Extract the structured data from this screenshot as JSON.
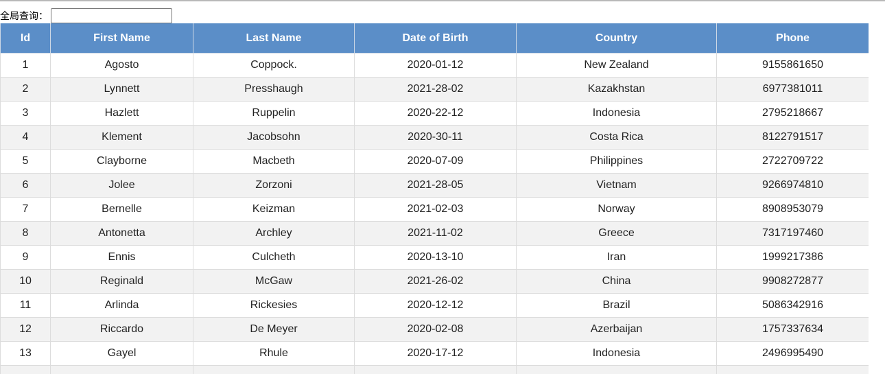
{
  "search": {
    "label": "全局查询：",
    "value": "",
    "placeholder": ""
  },
  "table": {
    "columns": [
      "Id",
      "First Name",
      "Last Name",
      "Date of Birth",
      "Country",
      "Phone"
    ],
    "rows": [
      [
        "1",
        "Agosto",
        "Coppock.",
        "2020-01-12",
        "New Zealand",
        "9155861650"
      ],
      [
        "2",
        "Lynnett",
        "Presshaugh",
        "2021-28-02",
        "Kazakhstan",
        "6977381011"
      ],
      [
        "3",
        "Hazlett",
        "Ruppelin",
        "2020-22-12",
        "Indonesia",
        "2795218667"
      ],
      [
        "4",
        "Klement",
        "Jacobsohn",
        "2020-30-11",
        "Costa Rica",
        "8122791517"
      ],
      [
        "5",
        "Clayborne",
        "Macbeth",
        "2020-07-09",
        "Philippines",
        "2722709722"
      ],
      [
        "6",
        "Jolee",
        "Zorzoni",
        "2021-28-05",
        "Vietnam",
        "9266974810"
      ],
      [
        "7",
        "Bernelle",
        "Keizman",
        "2021-02-03",
        "Norway",
        "8908953079"
      ],
      [
        "8",
        "Antonetta",
        "Archley",
        "2021-11-02",
        "Greece",
        "7317197460"
      ],
      [
        "9",
        "Ennis",
        "Culcheth",
        "2020-13-10",
        "Iran",
        "1999217386"
      ],
      [
        "10",
        "Reginald",
        "McGaw",
        "2021-26-02",
        "China",
        "9908272877"
      ],
      [
        "11",
        "Arlinda",
        "Rickesies",
        "2020-12-12",
        "Brazil",
        "5086342916"
      ],
      [
        "12",
        "Riccardo",
        "De Meyer",
        "2020-02-08",
        "Azerbaijan",
        "1757337634"
      ],
      [
        "13",
        "Gayel",
        "Rhule",
        "2020-17-12",
        "Indonesia",
        "2496995490"
      ]
    ]
  },
  "colors": {
    "header_bg": "#5b8ec8",
    "header_text": "#ffffff",
    "row_alt_bg": "#f2f2f2",
    "row_bg": "#ffffff",
    "cell_border": "#dcdcdc"
  }
}
